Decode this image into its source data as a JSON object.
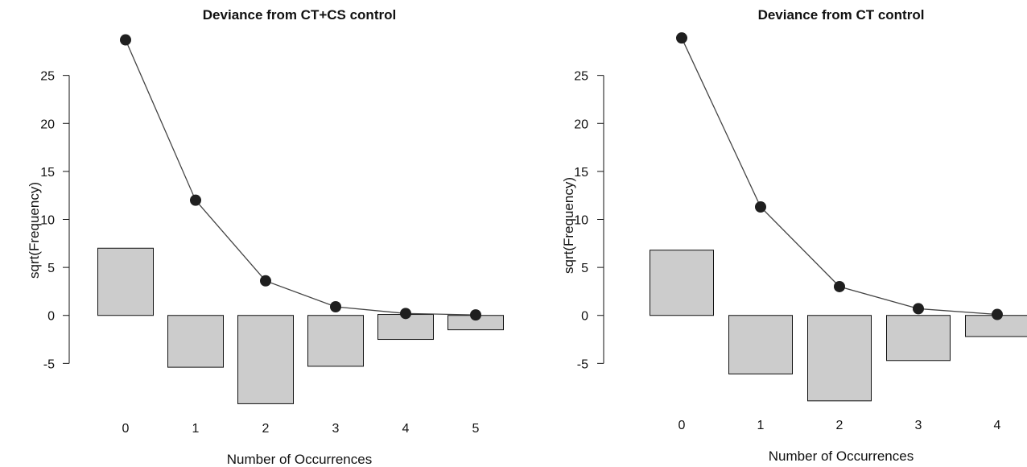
{
  "chart_data": [
    {
      "type": "bar",
      "title": "Deviance from CT+CS control",
      "xlabel": "Number of Occurrences",
      "ylabel": "sqrt(Frequency)",
      "categories": [
        "0",
        "1",
        "2",
        "3",
        "4",
        "5"
      ],
      "bar_top": [
        7.0,
        0.0,
        0.0,
        0.0,
        0.1,
        0.0
      ],
      "bar_bottom": [
        0.0,
        -5.4,
        -9.2,
        -5.3,
        -2.5,
        -1.5
      ],
      "fitted": [
        28.7,
        12.0,
        3.6,
        0.9,
        0.2,
        0.05
      ],
      "yticks": [
        -5,
        0,
        5,
        10,
        15,
        20,
        25
      ],
      "ylim": [
        -9.5,
        29.5
      ],
      "bar_color": "#cccccc",
      "point_color": "#1f1f1f",
      "line_color": "#444444"
    },
    {
      "type": "bar",
      "title": "Deviance from CT control",
      "xlabel": "Number of Occurrences",
      "ylabel": "sqrt(Frequency)",
      "categories": [
        "0",
        "1",
        "2",
        "3",
        "4"
      ],
      "bar_top": [
        6.8,
        0.0,
        0.0,
        0.0,
        0.0
      ],
      "bar_bottom": [
        0.0,
        -6.1,
        -8.9,
        -4.7,
        -2.2
      ],
      "fitted": [
        28.9,
        11.3,
        3.0,
        0.7,
        0.1
      ],
      "yticks": [
        -5,
        0,
        5,
        10,
        15,
        20,
        25
      ],
      "ylim": [
        -9.5,
        29.5
      ],
      "bar_color": "#cccccc",
      "point_color": "#1f1f1f",
      "line_color": "#444444"
    }
  ]
}
